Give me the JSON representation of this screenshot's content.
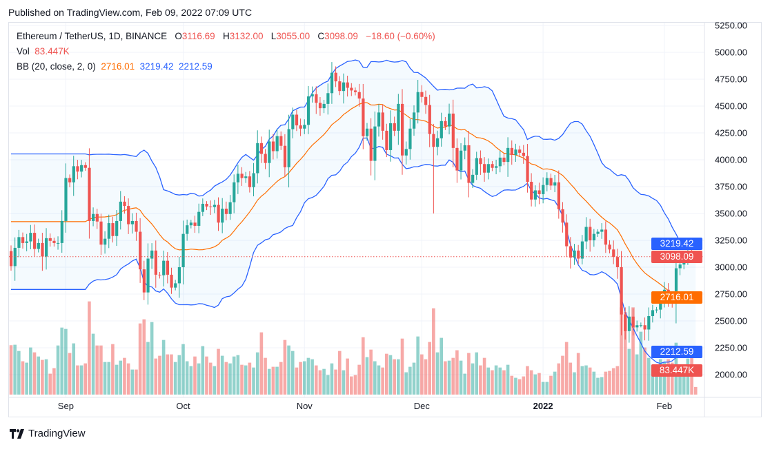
{
  "header": {
    "published": "Published on TradingView.com, Feb 09, 2022 07:09 UTC"
  },
  "legend": {
    "symbol": "Ethereum / TetherUS, 1D, BINANCE",
    "o_label": "O",
    "o_value": "3116.69",
    "h_label": "H",
    "h_value": "3132.00",
    "l_label": "L",
    "l_value": "3055.00",
    "c_label": "C",
    "c_value": "3098.09",
    "change": "−18.60 (−0.60%)",
    "vol_label": "Vol",
    "vol_value": "83.447K",
    "bb_label": "BB (20, close, 2, 0)",
    "bb_basis": "2716.01",
    "bb_upper": "3219.42",
    "bb_lower": "2212.59"
  },
  "price_tags": [
    {
      "label": "3219.42",
      "value": 3219.42,
      "color": "#2962ff"
    },
    {
      "label": "3098.09",
      "value": 3098.09,
      "color": "#ef5350"
    },
    {
      "label": "2716.01",
      "value": 2716.01,
      "color": "#ff6d00"
    },
    {
      "label": "2212.59",
      "value": 2212.59,
      "color": "#2962ff"
    },
    {
      "label": "83.447K",
      "value": 2040,
      "color": "#ef5350"
    }
  ],
  "colors": {
    "up": "#26a69a",
    "down": "#ef5350",
    "basis": "#ff6d00",
    "band": "#2962ff"
  },
  "footer": {
    "brand": "TradingView"
  },
  "chart_data": {
    "type": "candlestick",
    "title": "Ethereum / TetherUS, 1D, BINANCE",
    "y_ticks": [
      "5250.00",
      "5000.00",
      "4750.00",
      "4500.00",
      "4250.00",
      "4000.00",
      "3750.00",
      "3500.00",
      "3250.00",
      "3000.00",
      "2750.00",
      "2500.00",
      "2250.00",
      "2000.00"
    ],
    "y_tick_values": [
      5250,
      5000,
      4750,
      4500,
      4250,
      4000,
      3750,
      3500,
      3250,
      3000,
      2750,
      2500,
      2250,
      2000
    ],
    "ylim": [
      1970,
      5270
    ],
    "x_labels": [
      {
        "label": "Sep",
        "index": 14,
        "bold": false
      },
      {
        "label": "Oct",
        "index": 44,
        "bold": false
      },
      {
        "label": "Nov",
        "index": 75,
        "bold": false
      },
      {
        "label": "Dec",
        "index": 105,
        "bold": false
      },
      {
        "label": "2022",
        "index": 136,
        "bold": true
      },
      {
        "label": "Feb",
        "index": 167,
        "bold": false
      }
    ],
    "first_open": 3150,
    "last_candle": {
      "open": 3116.69,
      "high": 3132.0,
      "low": 3055.0,
      "close": 3098.09
    },
    "notable_lows": [
      {
        "index": 108,
        "low": 3500
      }
    ],
    "close": [
      3010,
      3180,
      3280,
      3225,
      3240,
      3320,
      3170,
      3225,
      3100,
      3270,
      3245,
      3225,
      3225,
      3430,
      3830,
      3790,
      3940,
      3890,
      3950,
      3925,
      3430,
      3495,
      3425,
      3210,
      3265,
      3410,
      3290,
      3430,
      3610,
      3570,
      3400,
      3430,
      3330,
      2980,
      2765,
      3080,
      3155,
      2930,
      2925,
      3060,
      2930,
      2810,
      2850,
      3000,
      3310,
      3390,
      3415,
      3385,
      3515,
      3590,
      3565,
      3560,
      3580,
      3415,
      3545,
      3495,
      3605,
      3790,
      3870,
      3830,
      3845,
      3745,
      3875,
      4155,
      4055,
      3970,
      4170,
      4080,
      4220,
      4130,
      3930,
      4285,
      4420,
      4320,
      4290,
      4325,
      4590,
      4610,
      4530,
      4480,
      4520,
      4620,
      4810,
      4730,
      4640,
      4720,
      4670,
      4645,
      4630,
      4570,
      4220,
      4290,
      3990,
      4310,
      4440,
      4270,
      4090,
      4340,
      4270,
      4520,
      4040,
      4100,
      4290,
      4440,
      4630,
      4585,
      4510,
      4240,
      4120,
      4200,
      4360,
      4310,
      4430,
      4110,
      3900,
      4085,
      4135,
      3785,
      3860,
      4015,
      3960,
      3880,
      3960,
      3925,
      3940,
      4020,
      3980,
      4110,
      4045,
      4095,
      4065,
      4035,
      3795,
      3630,
      3715,
      3680,
      3765,
      3830,
      3760,
      3790,
      3540,
      3415,
      3195,
      3090,
      3155,
      3080,
      3240,
      3375,
      3250,
      3310,
      3330,
      3350,
      3210,
      3165,
      3095,
      3000,
      2560,
      2405,
      2540,
      2440,
      2460,
      2460,
      2420,
      2545,
      2600,
      2605,
      2690,
      2790,
      2680,
      2660,
      2990,
      3025,
      3060,
      3140,
      3115,
      3098.09
    ],
    "volume_k": [
      538,
      543,
      475,
      363,
      348,
      513,
      460,
      415,
      378,
      385,
      228,
      288,
      535,
      730,
      715,
      453,
      558,
      318,
      318,
      340,
      1015,
      663,
      535,
      535,
      355,
      355,
      550,
      325,
      370,
      400,
      340,
      273,
      273,
      775,
      820,
      573,
      790,
      393,
      423,
      595,
      438,
      438,
      355,
      430,
      550,
      363,
      310,
      415,
      340,
      528,
      415,
      348,
      310,
      498,
      423,
      355,
      340,
      415,
      430,
      325,
      318,
      348,
      295,
      460,
      678,
      400,
      280,
      303,
      303,
      355,
      595,
      535,
      475,
      295,
      355,
      363,
      400,
      385,
      318,
      265,
      280,
      213,
      340,
      273,
      475,
      265,
      393,
      198,
      213,
      325,
      625,
      408,
      490,
      363,
      318,
      295,
      445,
      430,
      385,
      385,
      610,
      243,
      303,
      348,
      633,
      438,
      385,
      573,
      940,
      460,
      618,
      363,
      370,
      400,
      483,
      370,
      228,
      453,
      340,
      460,
      318,
      400,
      295,
      265,
      318,
      295,
      265,
      325,
      205,
      183,
      168,
      198,
      310,
      265,
      220,
      235,
      138,
      138,
      205,
      250,
      340,
      423,
      573,
      348,
      243,
      453,
      310,
      318,
      295,
      250,
      183,
      190,
      250,
      258,
      288,
      310,
      950,
      900,
      498,
      950,
      438,
      685,
      513,
      400,
      325,
      258,
      385,
      355,
      385,
      348,
      565,
      310,
      220,
      393,
      438,
      83.447
    ],
    "indicator": {
      "name": "Bollinger Bands",
      "length": 20,
      "source": "close",
      "mult": 2,
      "offset": 0
    }
  }
}
